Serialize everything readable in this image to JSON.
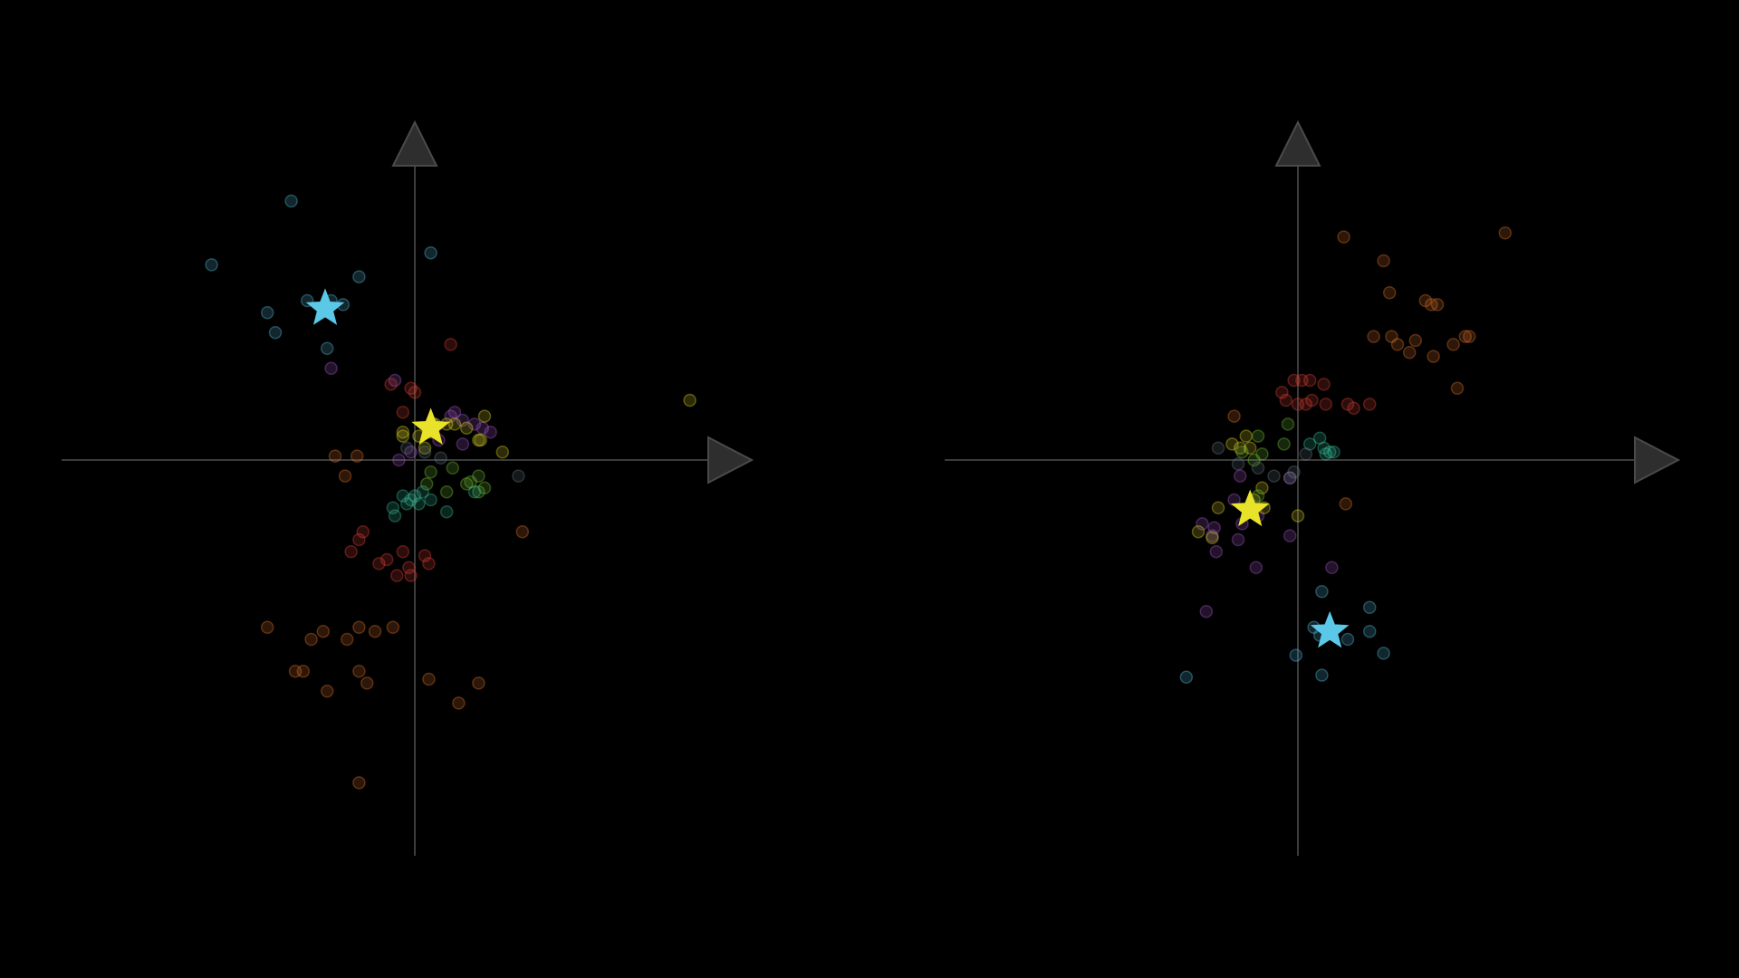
{
  "chart_data": [
    {
      "type": "scatter",
      "title": "",
      "xlabel": "",
      "ylabel": "",
      "xlim": [
        -8,
        8
      ],
      "ylim": [
        -9,
        7
      ],
      "grid": false,
      "legend": "none",
      "axes_style": "centered-arrows",
      "point_opacity": 0.35,
      "series": [
        {
          "color": "#5bc8e8",
          "marker": "circle",
          "x": [
            -3.1,
            -5.1,
            -1.4,
            -2.7,
            -3.7,
            -3.5,
            -2.1,
            -2.2,
            0.4,
            -1.8
          ],
          "y": [
            6.5,
            4.9,
            4.6,
            4.0,
            3.7,
            3.2,
            4.0,
            2.8,
            5.2,
            3.9
          ]
        },
        {
          "color": "#5bc8e8",
          "marker": "star",
          "x": [
            -2.25
          ],
          "y": [
            3.8
          ]
        },
        {
          "color": "#b05fd8",
          "marker": "circle",
          "x": [
            -2.1,
            -0.5,
            0.9,
            1.2,
            1.5,
            1.9,
            0.6,
            -0.4,
            1.0,
            1.7,
            -0.1,
            1.2
          ],
          "y": [
            2.3,
            2.0,
            1.1,
            1.0,
            0.9,
            0.7,
            0.5,
            0.0,
            1.2,
            0.8,
            0.2,
            0.4
          ]
        },
        {
          "color": "#e8463a",
          "marker": "circle",
          "x": [
            -0.1,
            -0.6,
            -0.3,
            0.9,
            -1.3,
            -1.4,
            -1.6,
            -0.7,
            -0.3,
            0.25,
            0.35,
            -0.15,
            -0.1,
            -0.45,
            -0.9,
            0.0
          ],
          "y": [
            1.8,
            1.9,
            1.2,
            2.9,
            -1.8,
            -2.0,
            -2.3,
            -2.5,
            -2.3,
            -2.4,
            -2.6,
            -2.7,
            -2.9,
            -2.9,
            -2.6,
            1.7
          ]
        },
        {
          "color": "#e8782a",
          "marker": "circle",
          "x": [
            -3.7,
            -2.6,
            -2.3,
            -1.7,
            -1.4,
            -1.0,
            -0.55,
            -3.0,
            -2.8,
            -1.4,
            -1.2,
            -2.2,
            0.35,
            1.6,
            1.1,
            -1.4,
            -2.0,
            -1.45,
            -1.75,
            2.7
          ],
          "y": [
            -4.2,
            -4.5,
            -4.3,
            -4.5,
            -4.2,
            -4.3,
            -4.2,
            -5.3,
            -5.3,
            -5.3,
            -5.6,
            -5.8,
            -5.5,
            -5.6,
            -6.1,
            -8.1,
            0.1,
            0.1,
            -0.4,
            -1.8
          ]
        },
        {
          "color": "#e8e22a",
          "marker": "circle",
          "x": [
            -0.3,
            0.1,
            0.4,
            1.0,
            1.3,
            1.75,
            -0.3,
            0.5,
            0.8,
            1.65,
            2.2,
            6.9,
            0.25,
            0.45,
            1.6
          ],
          "y": [
            0.7,
            0.6,
            0.7,
            0.9,
            0.8,
            1.1,
            0.6,
            0.9,
            0.9,
            0.5,
            0.2,
            1.5,
            0.3,
            0.9,
            0.5
          ]
        },
        {
          "color": "#7acb3a",
          "marker": "circle",
          "x": [
            0.3,
            0.95,
            1.6,
            1.4,
            1.75,
            1.6,
            0.8,
            1.3,
            0.4
          ],
          "y": [
            -0.6,
            -0.2,
            -0.4,
            -0.55,
            -0.7,
            -0.8,
            -0.8,
            -0.6,
            -0.3
          ]
        },
        {
          "color": "#3ac8a0",
          "marker": "circle",
          "x": [
            -0.3,
            -0.1,
            0.1,
            0.4,
            0.2,
            -0.55,
            -0.5,
            -0.2,
            0.0,
            0.8,
            1.5
          ],
          "y": [
            -0.9,
            -1.0,
            -1.1,
            -1.0,
            -0.8,
            -1.2,
            -1.4,
            -1.1,
            -0.9,
            -1.3,
            -0.8
          ]
        },
        {
          "color": "#6a7d88",
          "marker": "circle",
          "x": [
            0.65,
            2.6,
            0.25,
            -0.2
          ],
          "y": [
            0.05,
            -0.4,
            0.2,
            0.3
          ]
        },
        {
          "color": "#e8e22a",
          "marker": "star",
          "x": [
            0.4
          ],
          "y": [
            0.8
          ]
        }
      ]
    },
    {
      "type": "scatter",
      "title": "",
      "xlabel": "",
      "ylabel": "",
      "xlim": [
        -8,
        8
      ],
      "ylim": [
        -9,
        7
      ],
      "grid": false,
      "legend": "none",
      "axes_style": "centered-arrows",
      "point_opacity": 0.35,
      "series": [
        {
          "color": "#e8782a",
          "marker": "circle",
          "x": [
            1.15,
            5.2,
            2.15,
            2.3,
            3.2,
            3.5,
            3.35,
            4.2,
            1.9,
            2.35,
            2.5,
            2.95,
            3.4,
            3.9,
            4.3,
            4.0,
            2.8,
            1.2,
            -1.6
          ],
          "y": [
            5.6,
            5.7,
            5.0,
            4.2,
            4.0,
            3.9,
            3.9,
            3.1,
            3.1,
            3.1,
            2.9,
            3.0,
            2.6,
            2.9,
            3.1,
            1.8,
            2.7,
            -1.1,
            1.1
          ]
        },
        {
          "color": "#e8463a",
          "marker": "circle",
          "x": [
            -0.4,
            0.1,
            0.3,
            0.65,
            -0.3,
            0.0,
            0.7,
            1.8,
            1.4,
            -0.1,
            0.2,
            0.35,
            1.25
          ],
          "y": [
            1.7,
            2.0,
            2.0,
            1.9,
            1.5,
            1.4,
            1.4,
            1.4,
            1.3,
            2.0,
            1.4,
            1.5,
            1.4
          ]
        },
        {
          "color": "#b05fd8",
          "marker": "circle",
          "x": [
            -1.45,
            -2.4,
            -2.15,
            -1.5,
            -2.05,
            -2.1,
            -1.4,
            -1.05,
            0.85,
            -2.3,
            -1.0,
            -0.2,
            -1.6,
            -0.2
          ],
          "y": [
            -0.4,
            -1.6,
            -1.9,
            -2.0,
            -2.3,
            -1.7,
            -1.6,
            -2.7,
            -2.7,
            -3.8,
            -1.4,
            -0.45,
            -1.0,
            -1.9
          ]
        },
        {
          "color": "#e8e22a",
          "marker": "circle",
          "x": [
            -1.65,
            -1.45,
            -0.9,
            -2.5,
            -2.0,
            -0.85,
            0.0,
            -1.2,
            -1.3,
            -2.15,
            -1.1
          ],
          "y": [
            0.4,
            0.3,
            -0.7,
            -1.8,
            -1.2,
            -1.2,
            -1.4,
            0.3,
            0.6,
            -1.95,
            -1.0
          ]
        },
        {
          "color": "#7acb3a",
          "marker": "circle",
          "x": [
            -0.25,
            -0.35,
            -1.0,
            -1.4,
            -0.9,
            -1.1,
            -1.0
          ],
          "y": [
            0.9,
            0.4,
            0.6,
            0.2,
            0.15,
            0.0,
            -0.9
          ]
        },
        {
          "color": "#3ac8a0",
          "marker": "circle",
          "x": [
            0.3,
            0.65,
            0.55,
            0.8,
            0.7,
            0.9
          ],
          "y": [
            0.4,
            0.3,
            0.55,
            0.2,
            0.15,
            0.2
          ]
        },
        {
          "color": "#5bc8e8",
          "marker": "circle",
          "x": [
            0.6,
            1.8,
            1.8,
            1.25,
            0.6,
            2.15,
            -0.05,
            0.55,
            -2.8,
            0.4
          ],
          "y": [
            -3.3,
            -3.7,
            -4.3,
            -4.5,
            -5.4,
            -4.85,
            -4.9,
            -4.4,
            -5.45,
            -4.2
          ]
        },
        {
          "color": "#6a7d88",
          "marker": "circle",
          "x": [
            -2.0,
            -1.0,
            -0.6,
            -0.2,
            -0.1,
            0.2,
            -1.5
          ],
          "y": [
            0.3,
            -0.2,
            -0.4,
            -0.45,
            -0.3,
            0.15,
            -0.1
          ]
        },
        {
          "color": "#e8e22a",
          "marker": "star",
          "x": [
            -1.2
          ],
          "y": [
            -1.25
          ]
        },
        {
          "color": "#5bc8e8",
          "marker": "star",
          "x": [
            0.8
          ],
          "y": [
            -4.3
          ]
        }
      ]
    }
  ]
}
